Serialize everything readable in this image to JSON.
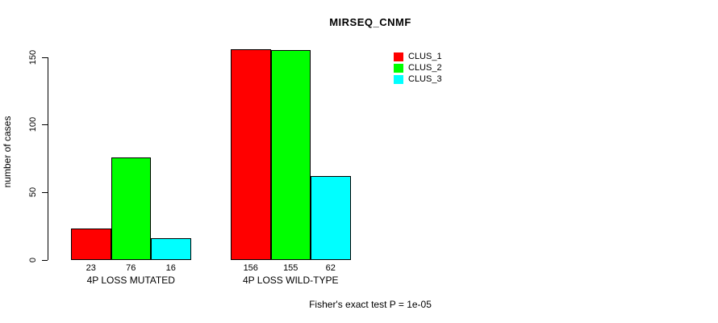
{
  "chart_data": {
    "type": "bar",
    "title": "MIRSEQ_CNMF",
    "ylabel": "number of cases",
    "xlabel": "",
    "categories": [
      "4P LOSS MUTATED",
      "4P LOSS WILD-TYPE"
    ],
    "series": [
      {
        "name": "CLUS_1",
        "color": "#FF0000",
        "values": [
          23,
          156
        ]
      },
      {
        "name": "CLUS_2",
        "color": "#00FF00",
        "values": [
          76,
          155
        ]
      },
      {
        "name": "CLUS_3",
        "color": "#00FFFF",
        "values": [
          16,
          62
        ]
      }
    ],
    "bar_value_labels": [
      [
        "23",
        "76",
        "16"
      ],
      [
        "156",
        "155",
        "62"
      ]
    ],
    "yticks": [
      0,
      50,
      100,
      150
    ],
    "ylim": [
      0,
      160
    ],
    "grid": false,
    "legend_position": "top-right",
    "annotation": "Fisher's exact test P = 1e-05"
  }
}
